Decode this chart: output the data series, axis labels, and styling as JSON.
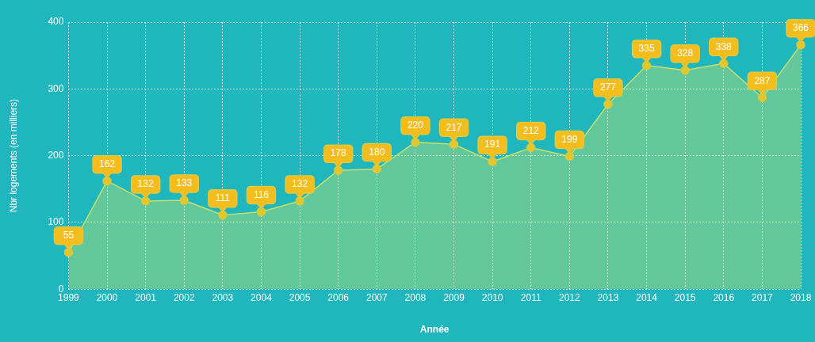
{
  "chart_data": {
    "type": "area",
    "xlabel": "Année",
    "ylabel": "Nbr logements (en milliers)",
    "categories": [
      "1999",
      "2000",
      "2001",
      "2002",
      "2003",
      "2004",
      "2005",
      "2006",
      "2007",
      "2008",
      "2009",
      "2010",
      "2011",
      "2012",
      "2013",
      "2014",
      "2015",
      "2016",
      "2017",
      "2018"
    ],
    "series": [
      {
        "color": "#c8e06a",
        "values": [
          55,
          162,
          132,
          133,
          111,
          116,
          132,
          178,
          180,
          220,
          217,
          191,
          212,
          199,
          277,
          335,
          328,
          338,
          287,
          366
        ]
      }
    ],
    "ylim": [
      0,
      400
    ],
    "yticks": [
      0,
      100,
      200,
      300,
      400
    ],
    "grid": true,
    "marker": "circle",
    "line_style": "solid",
    "data_labels": true
  }
}
